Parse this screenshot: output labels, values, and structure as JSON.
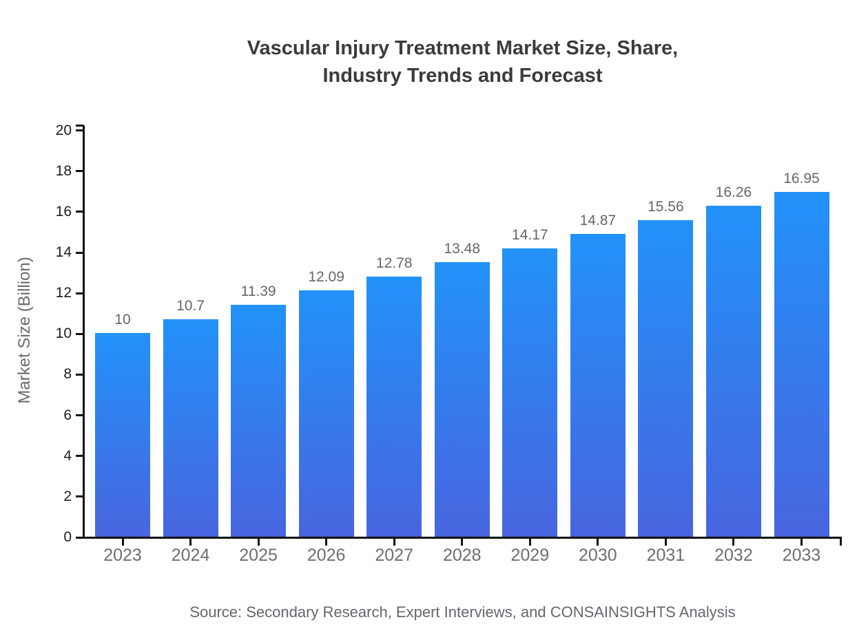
{
  "chart_data": {
    "type": "bar",
    "title": "Vascular Injury Treatment Market Size, Share, Industry Trends and Forecast",
    "title_lines": [
      "Vascular Injury Treatment Market Size, Share,",
      "Industry Trends and Forecast"
    ],
    "ylabel": "Market Size (Billion)",
    "xlabel": "",
    "categories": [
      "2023",
      "2024",
      "2025",
      "2026",
      "2027",
      "2028",
      "2029",
      "2030",
      "2031",
      "2032",
      "2033"
    ],
    "values": [
      10,
      10.7,
      11.39,
      12.09,
      12.78,
      13.48,
      14.17,
      14.87,
      15.56,
      16.26,
      16.95
    ],
    "value_labels": [
      "10",
      "10.7",
      "11.39",
      "12.09",
      "12.78",
      "13.48",
      "14.17",
      "14.87",
      "15.56",
      "16.26",
      "16.95"
    ],
    "ylim": [
      0,
      20
    ],
    "yticks": [
      0,
      2,
      4,
      6,
      8,
      10,
      12,
      14,
      16,
      18,
      20
    ],
    "grid": false,
    "legend": false,
    "source": "Source: Secondary Research, Expert Interviews, and CONSAINSIGHTS Analysis",
    "colors": {
      "bar_gradient_top": "#2292F9",
      "bar_gradient_bottom": "#4865DF",
      "axis": "#111111",
      "ytick_label": "#1c1c1c",
      "xtick_label": "#6e6e6e",
      "value_label": "#666666",
      "title": "#3b3b3b",
      "ylabel": "#6b6b6b",
      "source": "#63676c",
      "background": "#ffffff"
    }
  }
}
